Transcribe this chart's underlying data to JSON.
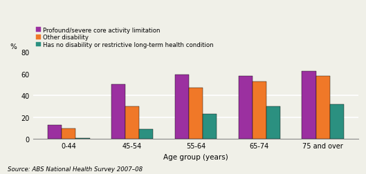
{
  "categories": [
    "0-44",
    "45-54",
    "55-64",
    "65-74",
    "75 and over"
  ],
  "series": {
    "Profound/severe core activity limitation": [
      13,
      50,
      59,
      58,
      62
    ],
    "Other disability": [
      10,
      30,
      47,
      53,
      58
    ],
    "Has no disability or restrictive long-term health condition": [
      1,
      9,
      23,
      30,
      32
    ]
  },
  "colors": {
    "Profound/severe core activity limitation": "#9B30A0",
    "Other disability": "#F07828",
    "Has no disability or restrictive long-term health condition": "#2B9080"
  },
  "ylabel": "%",
  "xlabel": "Age group (years)",
  "ylim": [
    0,
    80
  ],
  "yticks": [
    0,
    20,
    40,
    60,
    80
  ],
  "grid_lines": [
    20,
    40
  ],
  "source": "Source: ABS National Health Survey 2007–08",
  "background_color": "#f0f0e8",
  "bar_width": 0.22
}
